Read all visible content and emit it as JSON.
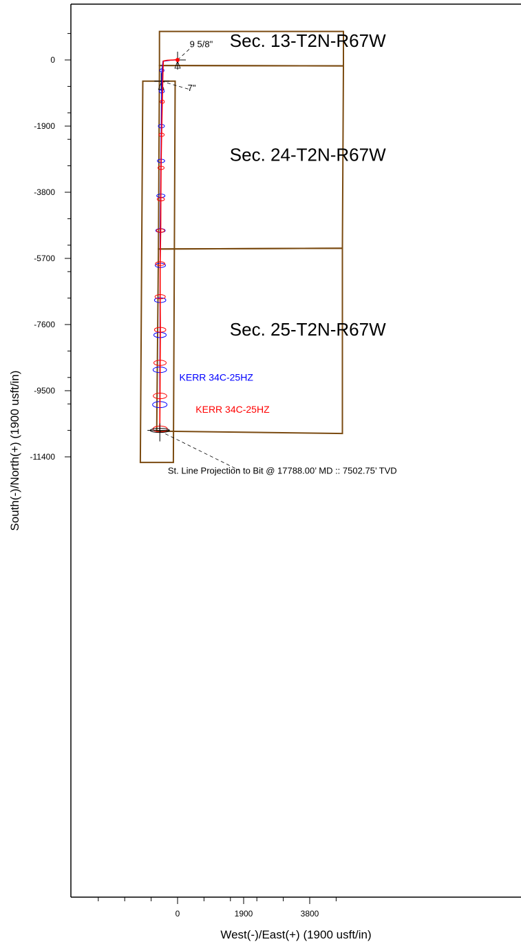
{
  "chart_data": {
    "type": "line",
    "xlabel": "West(-)/East(+) (1900 usft/in)",
    "ylabel": "South(-)/North(+) (1900 usft/in)",
    "xlim": [
      -2400,
      4900
    ],
    "ylim": [
      -12100,
      780
    ],
    "x_ticks": [
      0,
      1900,
      3800
    ],
    "y_ticks": [
      0,
      -1900,
      -3800,
      -5700,
      -7600,
      -9500,
      -11400
    ],
    "grid": false,
    "colors": {
      "section": "#7a4a10",
      "plan": "#0000ff",
      "actual": "#ff0000",
      "annotation": "#000000"
    },
    "sections": [
      {
        "label": "Sec. 13-T2N-R67W",
        "label_at": [
          1500,
          380
        ],
        "corners": [
          [
            -520,
            820
          ],
          [
            4770,
            820
          ],
          [
            4770,
            -170
          ],
          [
            -520,
            -160
          ]
        ]
      },
      {
        "label": "Sec. 24-T2N-R67W",
        "label_at": [
          1500,
          -2900
        ],
        "corners": [
          [
            -520,
            -160
          ],
          [
            4770,
            -170
          ],
          [
            4740,
            -5410
          ],
          [
            -550,
            -5430
          ]
        ]
      },
      {
        "label": "Sec. 25-T2N-R67W",
        "label_at": [
          1500,
          -7920
        ],
        "corners": [
          [
            -550,
            -5430
          ],
          [
            4740,
            -5410
          ],
          [
            4740,
            -10730
          ],
          [
            -600,
            -10660
          ]
        ]
      }
    ],
    "lease_box": {
      "corners": [
        [
          -1000,
          -610
        ],
        [
          -70,
          -610
        ],
        [
          -120,
          -11560
        ],
        [
          -1070,
          -11560
        ]
      ]
    },
    "series": [
      {
        "name": "KERR 34C-25HZ",
        "color": "#0000ff",
        "points": [
          [
            0,
            0
          ],
          [
            -60,
            0
          ],
          [
            -210,
            -10
          ],
          [
            -420,
            -40
          ],
          [
            -450,
            -300
          ],
          [
            -460,
            -900
          ],
          [
            -470,
            -1900
          ],
          [
            -480,
            -2900
          ],
          [
            -490,
            -3900
          ],
          [
            -500,
            -4900
          ],
          [
            -500,
            -5900
          ],
          [
            -505,
            -6900
          ],
          [
            -505,
            -7900
          ],
          [
            -510,
            -8900
          ],
          [
            -510,
            -9900
          ],
          [
            -510,
            -10640
          ]
        ],
        "ellipses": [
          [
            -450,
            -300
          ],
          [
            -455,
            -900
          ],
          [
            -465,
            -1900
          ],
          [
            -475,
            -2900
          ],
          [
            -480,
            -3900
          ],
          [
            -490,
            -4900
          ],
          [
            -495,
            -5900
          ],
          [
            -500,
            -6900
          ],
          [
            -505,
            -7900
          ],
          [
            -510,
            -8900
          ],
          [
            -510,
            -9900
          ]
        ],
        "label_at": [
          50,
          -9210
        ]
      },
      {
        "name": "KERR 34C-25HZ",
        "color": "#ff0000",
        "points": [
          [
            0,
            10
          ],
          [
            -120,
            0
          ],
          [
            -300,
            -10
          ],
          [
            -410,
            -30
          ],
          [
            -420,
            -300
          ],
          [
            -440,
            -1200
          ],
          [
            -460,
            -2150
          ],
          [
            -475,
            -3100
          ],
          [
            -480,
            -4000
          ],
          [
            -485,
            -4900
          ],
          [
            -500,
            -5850
          ],
          [
            -500,
            -6800
          ],
          [
            -495,
            -7750
          ],
          [
            -500,
            -8700
          ],
          [
            -505,
            -9650
          ],
          [
            -510,
            -10610
          ]
        ],
        "ellipses": [
          [
            -440,
            -1200
          ],
          [
            -460,
            -2150
          ],
          [
            -475,
            -3100
          ],
          [
            -480,
            -4000
          ],
          [
            -490,
            -4900
          ],
          [
            -500,
            -5850
          ],
          [
            -500,
            -6800
          ],
          [
            -500,
            -7750
          ],
          [
            -505,
            -8700
          ],
          [
            -505,
            -9650
          ],
          [
            -500,
            -10600
          ]
        ],
        "label_at": [
          520,
          -10130
        ]
      }
    ],
    "annotations": [
      {
        "text": "9 5/8\"",
        "text_at": [
          350,
          370
        ],
        "leader": [
          [
            0,
            0
          ],
          [
            350,
            320
          ]
        ],
        "marker_at": [
          0,
          0
        ]
      },
      {
        "text": "7\"",
        "text_at": [
          290,
          -890
        ],
        "leader": [
          [
            -470,
            -610
          ],
          [
            390,
            -860
          ]
        ],
        "marker_at": [
          -470,
          -610
        ]
      },
      {
        "text": "St. Line Projection to Bit @ 17788.00’ MD :: 7502.75’ TVD",
        "text_at": [
          -280,
          -11880
        ],
        "leader": [
          [
            -510,
            -10660
          ],
          [
            1760,
            -11780
          ]
        ]
      }
    ]
  }
}
